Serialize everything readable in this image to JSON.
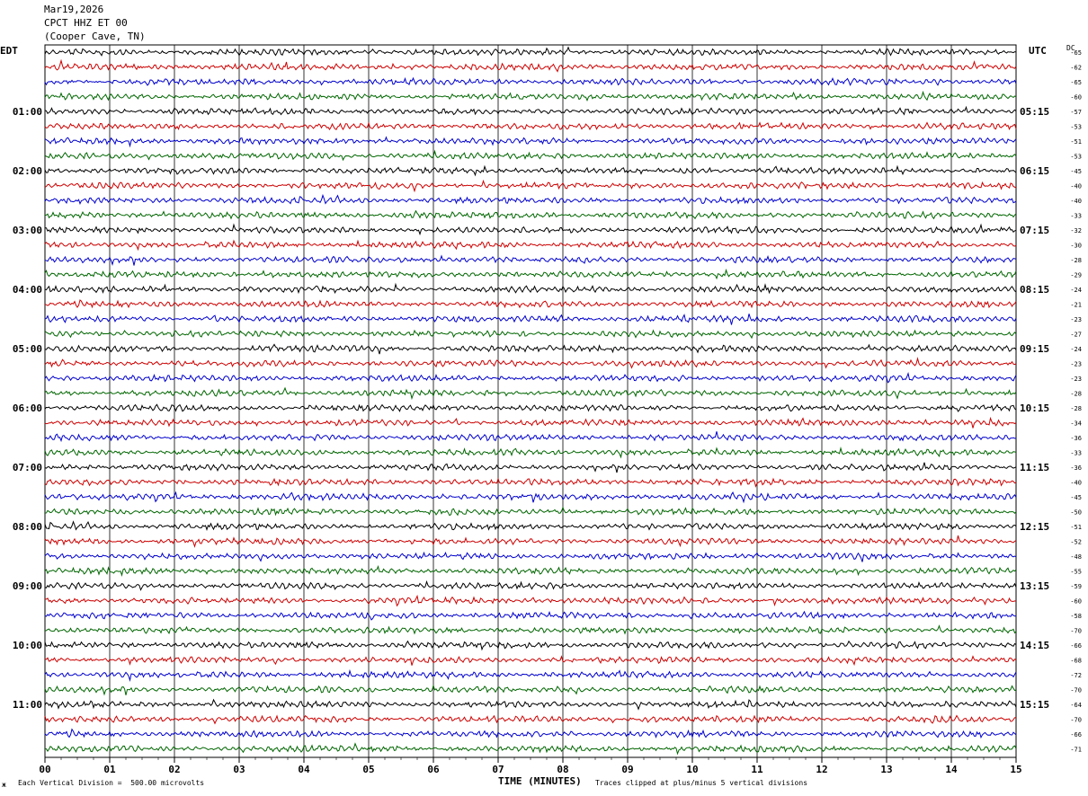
{
  "header": {
    "date": "Mar19,2026",
    "station": "CPCT HHZ ET 00",
    "location": "(Cooper Cave, TN)"
  },
  "labels": {
    "left_zone": "EDT",
    "right_zone": "UTC",
    "dc_label": "DC",
    "corner_mark": "ж"
  },
  "footer": {
    "vertical_division": "Each Vertical Division =  500.00 microvolts",
    "clip_note": "Traces clipped at plus/minus 5 vertical divisions"
  },
  "chart_data": {
    "type": "line",
    "xlabel": "TIME (MINUTES)",
    "xlim": [
      0,
      15
    ],
    "x_ticks": [
      "00",
      "01",
      "02",
      "03",
      "04",
      "05",
      "06",
      "07",
      "08",
      "09",
      "10",
      "11",
      "12",
      "13",
      "14",
      "15"
    ],
    "trace_colors": [
      "#000000",
      "#cc0000",
      "#0000cc",
      "#006600"
    ],
    "traces_per_hour": 4,
    "left_hour_labels": [
      "01:00",
      "02:00",
      "03:00",
      "04:00",
      "05:00",
      "06:00",
      "07:00",
      "08:00",
      "09:00",
      "10:00",
      "11:00"
    ],
    "right_hour_labels": [
      "05:15",
      "06:15",
      "07:15",
      "08:15",
      "09:15",
      "10:15",
      "11:15",
      "12:15",
      "13:15",
      "14:15",
      "15:15"
    ],
    "dc_offsets": [
      -65,
      -62,
      -65,
      -60,
      -57,
      -53,
      -51,
      -53,
      -45,
      -40,
      -40,
      -33,
      -32,
      -30,
      -28,
      -29,
      -24,
      -21,
      -23,
      -27,
      -24,
      -23,
      -23,
      -28,
      -28,
      -34,
      -36,
      -33,
      -36,
      -40,
      -45,
      -50,
      -51,
      -52,
      -48,
      -55,
      -59,
      -60,
      -58,
      -70,
      -66,
      -68,
      -72,
      -70,
      -64,
      -70,
      -66,
      -71
    ]
  }
}
